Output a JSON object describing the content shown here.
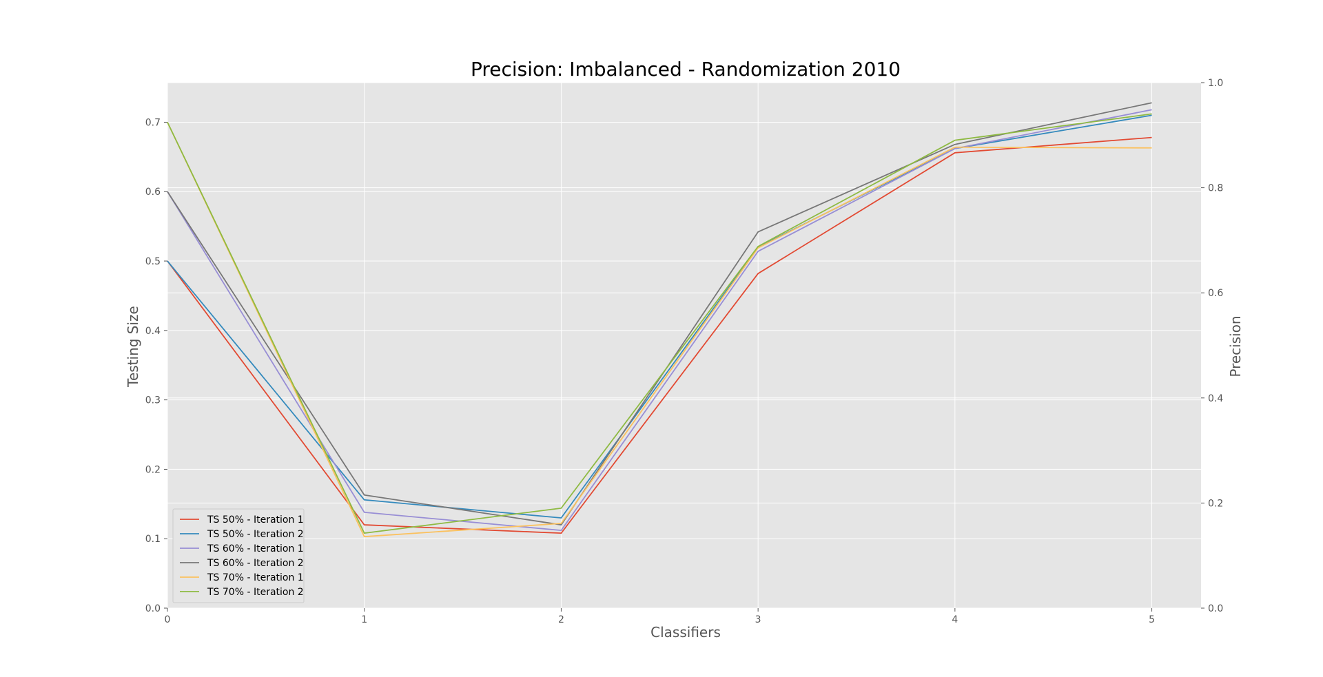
{
  "chart_data": {
    "type": "line",
    "title": "Precision: Imbalanced - Randomization 2010",
    "xlabel": "Classifiers",
    "ylabel": "Testing Size",
    "ylabel_right": "Precision",
    "x": [
      0,
      1,
      2,
      3,
      4,
      5
    ],
    "xlim": [
      0,
      5.25
    ],
    "ylim": [
      0,
      0.757
    ],
    "ylim_right": [
      0,
      1.0
    ],
    "xticks": [
      "0",
      "1",
      "2",
      "3",
      "4",
      "5"
    ],
    "yticks": [
      "0.0",
      "0.1",
      "0.2",
      "0.3",
      "0.4",
      "0.5",
      "0.6",
      "0.7"
    ],
    "yticks_right": [
      "0.0",
      "0.2",
      "0.4",
      "0.6",
      "0.8",
      "1.0"
    ],
    "grid": true,
    "legend_position": "lower-left",
    "background": "#e5e5e5",
    "series": [
      {
        "name": "TS 50% - Iteration 1",
        "color": "#E24A33",
        "values": [
          0.5,
          0.12,
          0.108,
          0.482,
          0.656,
          0.678
        ]
      },
      {
        "name": "TS 50% - Iteration 2",
        "color": "#348ABD",
        "values": [
          0.5,
          0.156,
          0.13,
          0.52,
          0.662,
          0.71
        ]
      },
      {
        "name": "TS 60% - Iteration 1",
        "color": "#988ED5",
        "values": [
          0.6,
          0.138,
          0.112,
          0.514,
          0.662,
          0.718
        ]
      },
      {
        "name": "TS 60% - Iteration 2",
        "color": "#777777",
        "values": [
          0.6,
          0.163,
          0.12,
          0.542,
          0.668,
          0.728
        ]
      },
      {
        "name": "TS 70% - Iteration 1",
        "color": "#FBC15E",
        "values": [
          0.7,
          0.103,
          0.122,
          0.519,
          0.664,
          0.663
        ]
      },
      {
        "name": "TS 70% - Iteration 2",
        "color": "#8EBA42",
        "values": [
          0.7,
          0.108,
          0.144,
          0.521,
          0.674,
          0.712
        ]
      }
    ]
  }
}
